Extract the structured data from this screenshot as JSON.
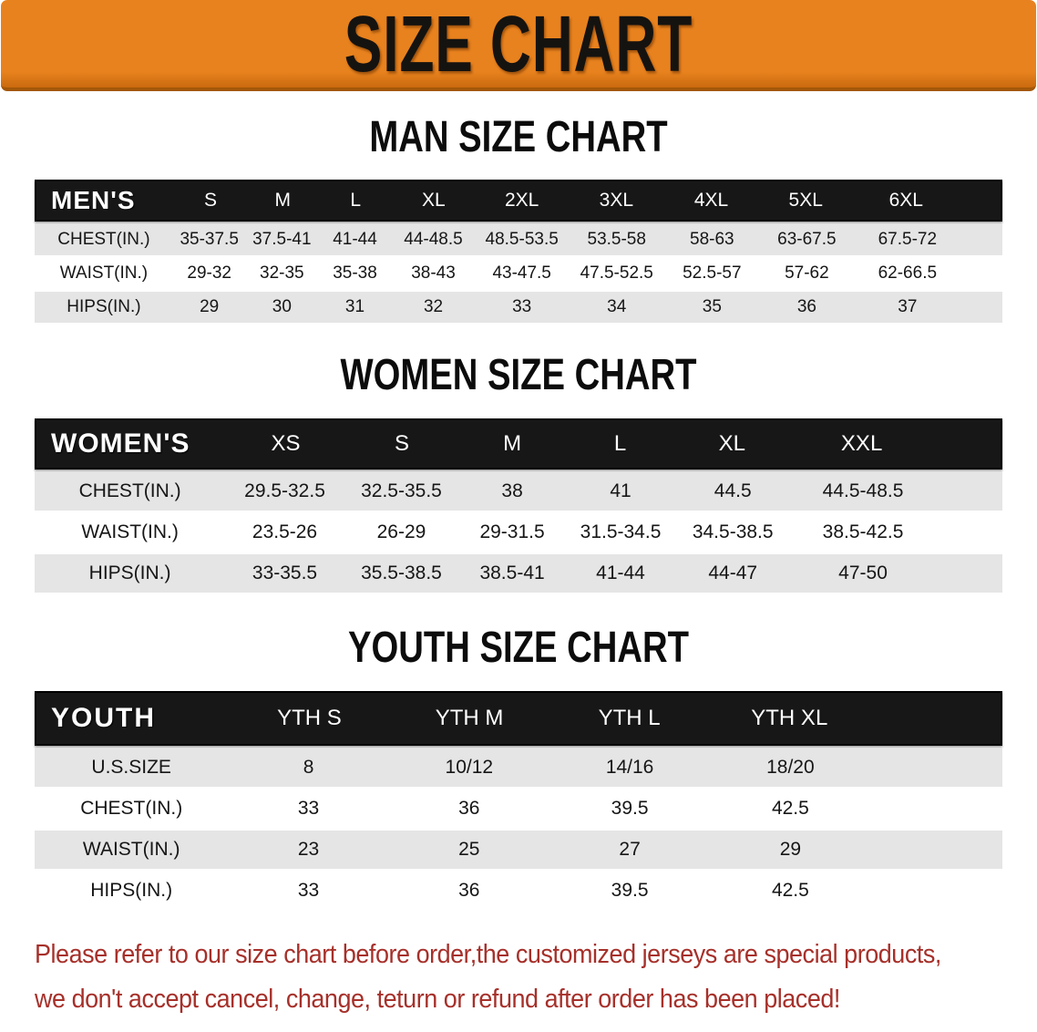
{
  "banner": {
    "title": "SIZE CHART"
  },
  "colors": {
    "banner_bg": "#E8821E",
    "banner_edge": "#A35708",
    "header_bg": "#171717",
    "row_alt": "#E5E5E5",
    "notice_color": "#A6302A"
  },
  "sections": [
    {
      "heading": "MAN SIZE CHART",
      "table_label": "MEN'S",
      "columns": [
        "S",
        "M",
        "L",
        "XL",
        "2XL",
        "3XL",
        "4XL",
        "5XL",
        "6XL"
      ],
      "rows": [
        {
          "label": "CHEST(IN.)",
          "values": [
            "35-37.5",
            "37.5-41",
            "41-44",
            "44-48.5",
            "48.5-53.5",
            "53.5-58",
            "58-63",
            "63-67.5",
            "67.5-72"
          ]
        },
        {
          "label": "WAIST(IN.)",
          "values": [
            "29-32",
            "32-35",
            "35-38",
            "38-43",
            "43-47.5",
            "47.5-52.5",
            "52.5-57",
            "57-62",
            "62-66.5"
          ]
        },
        {
          "label": "HIPS(IN.)",
          "values": [
            "29",
            "30",
            "31",
            "32",
            "33",
            "34",
            "35",
            "36",
            "37"
          ]
        }
      ]
    },
    {
      "heading": "WOMEN SIZE CHART",
      "table_label": "WOMEN'S",
      "columns": [
        "XS",
        "S",
        "M",
        "L",
        "XL",
        "XXL"
      ],
      "rows": [
        {
          "label": "CHEST(IN.)",
          "values": [
            "29.5-32.5",
            "32.5-35.5",
            "38",
            "41",
            "44.5",
            "44.5-48.5"
          ]
        },
        {
          "label": "WAIST(IN.)",
          "values": [
            "23.5-26",
            "26-29",
            "29-31.5",
            "31.5-34.5",
            "34.5-38.5",
            "38.5-42.5"
          ]
        },
        {
          "label": "HIPS(IN.)",
          "values": [
            "33-35.5",
            "35.5-38.5",
            "38.5-41",
            "41-44",
            "44-47",
            "47-50"
          ]
        }
      ]
    },
    {
      "heading": "YOUTH SIZE CHART",
      "table_label": "YOUTH",
      "columns": [
        "YTH S",
        "YTH M",
        "YTH L",
        "YTH XL"
      ],
      "rows": [
        {
          "label": "U.S.SIZE",
          "values": [
            "8",
            "10/12",
            "14/16",
            "18/20"
          ]
        },
        {
          "label": "CHEST(IN.)",
          "values": [
            "33",
            "36",
            "39.5",
            "42.5"
          ]
        },
        {
          "label": "WAIST(IN.)",
          "values": [
            "23",
            "25",
            "27",
            "29"
          ]
        },
        {
          "label": "HIPS(IN.)",
          "values": [
            "33",
            "36",
            "39.5",
            "42.5"
          ]
        }
      ]
    }
  ],
  "footer": {
    "line1": "Please refer to our size chart before order,the customized jerseys are special products,",
    "line2": "we don't accept cancel, change, teturn or refund after order has been placed!"
  }
}
